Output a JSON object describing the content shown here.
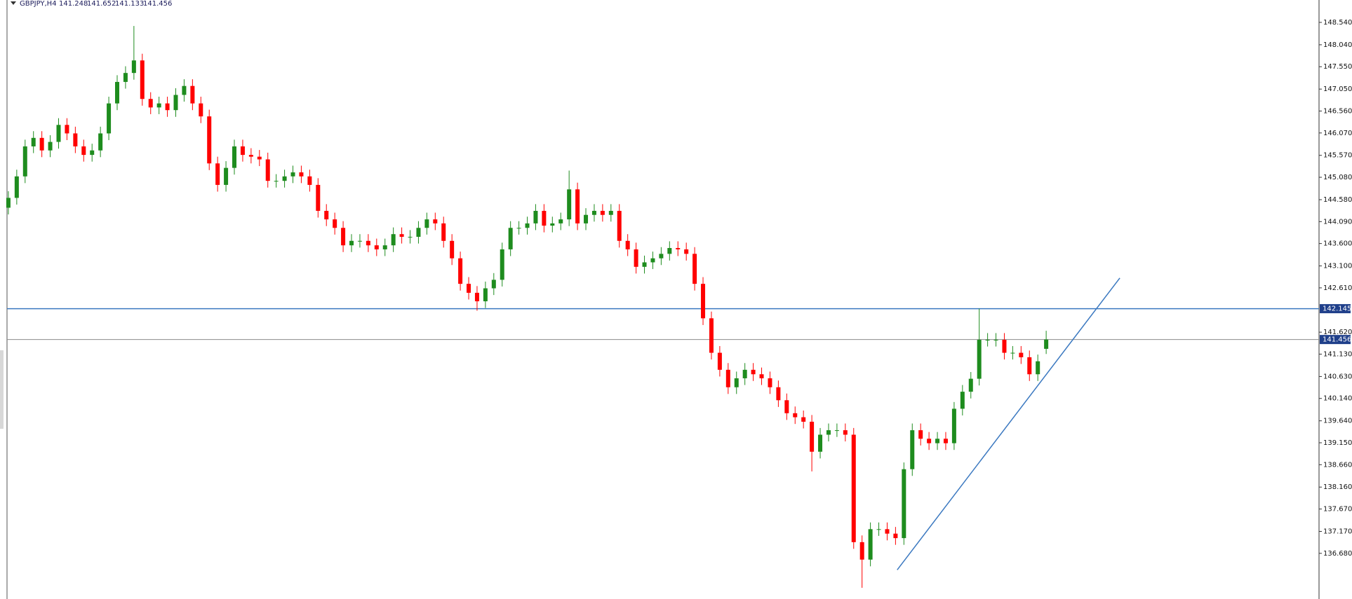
{
  "chart_data": {
    "type": "candlestick",
    "title": "GBPJPY,H4",
    "up_color": "#1e8c1e",
    "down_color": "#ff0000",
    "xlim": [
      -1.0,
      156.6
    ],
    "ylim": [
      135.66,
      149.04
    ],
    "yticks": [
      {
        "value": 148.54,
        "label": "148.540"
      },
      {
        "value": 148.04,
        "label": "148.040"
      },
      {
        "value": 147.55,
        "label": "147.550"
      },
      {
        "value": 147.05,
        "label": "147.050"
      },
      {
        "value": 146.56,
        "label": "146.560"
      },
      {
        "value": 146.07,
        "label": "146.070"
      },
      {
        "value": 145.57,
        "label": "145.570"
      },
      {
        "value": 145.08,
        "label": "145.080"
      },
      {
        "value": 144.58,
        "label": "144.580"
      },
      {
        "value": 144.09,
        "label": "144.090"
      },
      {
        "value": 143.6,
        "label": "143.600"
      },
      {
        "value": 143.1,
        "label": "143.100"
      },
      {
        "value": 142.61,
        "label": "142.610"
      },
      {
        "value": 141.62,
        "label": "141.620"
      },
      {
        "value": 141.13,
        "label": "141.130"
      },
      {
        "value": 140.63,
        "label": "140.630"
      },
      {
        "value": 140.14,
        "label": "140.140"
      },
      {
        "value": 139.64,
        "label": "139.640"
      },
      {
        "value": 139.15,
        "label": "139.150"
      },
      {
        "value": 138.66,
        "label": "138.660"
      },
      {
        "value": 138.16,
        "label": "138.160"
      },
      {
        "value": 137.67,
        "label": "137.670"
      },
      {
        "value": 137.17,
        "label": "137.170"
      },
      {
        "value": 136.68,
        "label": "136.680"
      }
    ],
    "hlines": [
      {
        "value": 142.145,
        "color": "#3a78c0"
      },
      {
        "value": 141.456,
        "color": "#8c8c8c"
      }
    ],
    "trendline": {
      "x": [
        106.2,
        132.8
      ],
      "y": [
        136.31,
        142.83
      ],
      "color": "#3a78c0"
    },
    "open": [
      144.4,
      144.62,
      145.1,
      145.77,
      145.96,
      145.68,
      145.87,
      146.25,
      146.06,
      145.77,
      145.58,
      145.68,
      146.06,
      146.73,
      147.21,
      147.41,
      147.69,
      146.83,
      146.64,
      146.73,
      146.58,
      146.92,
      147.12,
      146.73,
      146.44,
      145.39,
      144.91,
      145.29,
      145.77,
      145.58,
      145.54,
      145.48,
      145.0,
      145.0,
      145.1,
      145.19,
      145.1,
      144.91,
      144.33,
      144.14,
      143.95,
      143.56,
      143.66,
      143.66,
      143.56,
      143.47,
      143.56,
      143.81,
      143.75,
      143.75,
      143.95,
      144.14,
      144.05,
      143.66,
      143.27,
      142.7,
      142.5,
      142.31,
      142.6,
      142.79,
      143.47,
      143.95,
      143.95,
      144.05,
      144.33,
      144.0,
      144.05,
      144.14,
      144.81,
      144.05,
      144.24,
      144.33,
      144.24,
      144.33,
      143.66,
      143.47,
      143.08,
      143.18,
      143.27,
      143.37,
      143.5,
      143.47,
      143.37,
      142.7,
      141.93,
      141.16,
      140.78,
      140.39,
      140.59,
      140.78,
      140.68,
      140.59,
      140.39,
      140.1,
      139.81,
      139.72,
      139.62,
      138.95,
      139.33,
      139.43,
      139.43,
      139.33,
      136.93,
      136.54,
      137.22,
      137.22,
      137.12,
      137.02,
      138.56,
      139.43,
      139.24,
      139.14,
      139.24,
      139.14,
      139.91,
      140.29,
      140.58,
      141.45,
      141.45,
      141.45,
      141.16,
      141.16,
      141.06,
      140.68,
      141.248
    ],
    "high": [
      144.77,
      145.25,
      145.92,
      146.11,
      146.11,
      146.02,
      146.4,
      146.4,
      146.21,
      145.92,
      145.83,
      146.21,
      146.88,
      147.36,
      147.56,
      148.46,
      147.84,
      146.98,
      146.88,
      146.88,
      147.07,
      147.27,
      147.27,
      146.88,
      146.59,
      145.54,
      145.44,
      145.92,
      145.92,
      145.73,
      145.69,
      145.63,
      145.15,
      145.25,
      145.34,
      145.34,
      145.25,
      145.06,
      144.48,
      144.29,
      144.1,
      143.81,
      143.81,
      143.81,
      143.71,
      143.71,
      143.96,
      143.96,
      143.9,
      144.1,
      144.29,
      144.29,
      144.2,
      143.81,
      143.42,
      142.85,
      142.65,
      142.75,
      142.94,
      143.62,
      144.1,
      144.1,
      144.2,
      144.48,
      144.48,
      144.2,
      144.29,
      145.23,
      144.96,
      144.39,
      144.48,
      144.48,
      144.48,
      144.48,
      143.81,
      143.62,
      143.33,
      143.42,
      143.52,
      143.65,
      143.65,
      143.62,
      143.52,
      142.85,
      142.08,
      141.31,
      140.93,
      140.74,
      140.93,
      140.93,
      140.83,
      140.74,
      140.54,
      140.25,
      139.96,
      139.87,
      139.77,
      139.48,
      139.58,
      139.58,
      139.58,
      139.48,
      137.08,
      137.37,
      137.37,
      137.37,
      137.27,
      138.71,
      139.58,
      139.58,
      139.39,
      139.39,
      139.39,
      140.06,
      140.44,
      140.73,
      142.145,
      141.6,
      141.6,
      141.6,
      141.31,
      141.31,
      141.21,
      141.12,
      141.652
    ],
    "low": [
      144.25,
      144.47,
      144.95,
      145.62,
      145.53,
      145.53,
      145.72,
      145.91,
      145.62,
      145.43,
      145.43,
      145.53,
      145.91,
      146.58,
      147.06,
      147.26,
      146.68,
      146.49,
      146.49,
      146.43,
      146.43,
      146.77,
      146.58,
      146.29,
      145.24,
      144.76,
      144.76,
      145.14,
      145.43,
      145.39,
      145.33,
      144.85,
      144.85,
      144.85,
      144.95,
      144.95,
      144.76,
      144.18,
      143.99,
      143.8,
      143.41,
      143.41,
      143.51,
      143.41,
      143.32,
      143.32,
      143.41,
      143.6,
      143.6,
      143.6,
      143.8,
      143.9,
      143.51,
      143.12,
      142.55,
      142.35,
      142.1,
      142.16,
      142.45,
      142.64,
      143.32,
      143.8,
      143.8,
      143.9,
      143.85,
      143.85,
      143.9,
      143.99,
      143.9,
      143.9,
      144.09,
      144.09,
      144.09,
      143.51,
      143.32,
      142.93,
      142.93,
      143.03,
      143.12,
      143.22,
      143.32,
      143.22,
      142.55,
      141.78,
      141.01,
      140.63,
      140.24,
      140.24,
      140.44,
      140.53,
      140.44,
      140.24,
      139.95,
      139.66,
      139.57,
      139.47,
      138.51,
      138.8,
      139.18,
      139.28,
      139.18,
      136.78,
      135.91,
      136.39,
      137.07,
      136.97,
      136.87,
      136.87,
      138.41,
      139.09,
      138.99,
      138.99,
      138.99,
      138.99,
      139.76,
      140.14,
      140.43,
      141.3,
      141.3,
      141.01,
      141.01,
      140.91,
      140.53,
      140.53,
      141.133
    ],
    "close": [
      144.62,
      145.1,
      145.77,
      145.96,
      145.68,
      145.87,
      146.25,
      146.06,
      145.77,
      145.58,
      145.68,
      146.06,
      146.73,
      147.21,
      147.41,
      147.69,
      146.83,
      146.64,
      146.73,
      146.58,
      146.92,
      147.12,
      146.73,
      146.44,
      145.39,
      144.91,
      145.29,
      145.77,
      145.58,
      145.54,
      145.48,
      145.0,
      145.0,
      145.1,
      145.19,
      145.1,
      144.91,
      144.33,
      144.14,
      143.95,
      143.56,
      143.66,
      143.66,
      143.56,
      143.47,
      143.56,
      143.81,
      143.75,
      143.75,
      143.95,
      144.14,
      144.05,
      143.66,
      143.27,
      142.7,
      142.5,
      142.31,
      142.6,
      142.79,
      143.47,
      143.95,
      143.95,
      144.05,
      144.33,
      144.0,
      144.05,
      144.14,
      144.81,
      144.05,
      144.24,
      144.33,
      144.24,
      144.33,
      143.66,
      143.47,
      143.08,
      143.18,
      143.27,
      143.37,
      143.5,
      143.47,
      143.37,
      142.7,
      141.93,
      141.16,
      140.78,
      140.39,
      140.59,
      140.78,
      140.68,
      140.59,
      140.39,
      140.1,
      139.81,
      139.72,
      139.62,
      138.95,
      139.33,
      139.43,
      139.43,
      139.33,
      136.93,
      136.54,
      137.22,
      137.22,
      137.12,
      137.02,
      138.56,
      139.43,
      139.24,
      139.14,
      139.24,
      139.14,
      139.91,
      140.29,
      140.58,
      141.45,
      141.45,
      141.45,
      141.16,
      141.16,
      141.06,
      140.68,
      140.97,
      141.456
    ]
  }
}
